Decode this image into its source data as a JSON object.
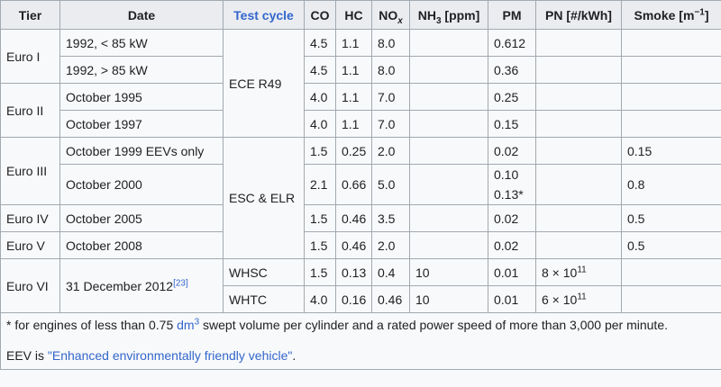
{
  "headers": {
    "tier": "Tier",
    "date": "Date",
    "test_cycle": "Test cycle",
    "co": "CO",
    "hc": "HC",
    "nox_base": "NO",
    "nox_sub": "x",
    "nh3_base": "NH",
    "nh3_sub": "3",
    "nh3_unit": " [ppm]",
    "pm": "PM",
    "pn": "PN [#/kWh]",
    "smoke_base": "Smoke [m",
    "smoke_exp": "−1",
    "smoke_close": "]"
  },
  "rows": [
    {
      "tier": "Euro I",
      "date": "1992, < 85 kW",
      "cycle": "ECE R49",
      "co": "4.5",
      "hc": "1.1",
      "nox": "8.0",
      "nh3": "",
      "pm": "0.612",
      "pn": "",
      "smoke": ""
    },
    {
      "date": "1992, > 85 kW",
      "co": "4.5",
      "hc": "1.1",
      "nox": "8.0",
      "nh3": "",
      "pm": "0.36",
      "pn": "",
      "smoke": ""
    },
    {
      "tier": "Euro II",
      "date": "October 1995",
      "co": "4.0",
      "hc": "1.1",
      "nox": "7.0",
      "nh3": "",
      "pm": "0.25",
      "pn": "",
      "smoke": ""
    },
    {
      "date": "October 1997",
      "co": "4.0",
      "hc": "1.1",
      "nox": "7.0",
      "nh3": "",
      "pm": "0.15",
      "pn": "",
      "smoke": ""
    },
    {
      "tier": "Euro III",
      "date": "October 1999 EEVs only",
      "cycle": "ESC & ELR",
      "co": "1.5",
      "hc": "0.25",
      "nox": "2.0",
      "nh3": "",
      "pm": "0.02",
      "pn": "",
      "smoke": "0.15"
    },
    {
      "date": "October 2000",
      "co": "2.1",
      "hc": "0.66",
      "nox": "5.0",
      "nh3": "",
      "pm_a": "0.10",
      "pm_b": "0.13*",
      "pn": "",
      "smoke": "0.8"
    },
    {
      "tier": "Euro IV",
      "date": "October 2005",
      "co": "1.5",
      "hc": "0.46",
      "nox": "3.5",
      "nh3": "",
      "pm": "0.02",
      "pn": "",
      "smoke": "0.5"
    },
    {
      "tier": "Euro V",
      "date": "October 2008",
      "co": "1.5",
      "hc": "0.46",
      "nox": "2.0",
      "nh3": "",
      "pm": "0.02",
      "pn": "",
      "smoke": "0.5"
    },
    {
      "tier": "Euro VI",
      "date": "31 December 2012",
      "date_ref": "[23]",
      "cycle": "WHSC",
      "co": "1.5",
      "hc": "0.13",
      "nox": "0.4",
      "nh3": "10",
      "pm": "0.01",
      "pn_base": "8 × 10",
      "pn_exp": "11",
      "smoke": ""
    },
    {
      "cycle": "WHTC",
      "co": "4.0",
      "hc": "0.16",
      "nox": "0.46",
      "nh3": "10",
      "pm": "0.01",
      "pn_base": "6 × 10",
      "pn_exp": "11",
      "smoke": ""
    }
  ],
  "footnotes": {
    "line1_a": "* for engines of less than 0.75 ",
    "line1_link": "dm",
    "line1_link_exp": "3",
    "line1_b": " swept volume per cylinder and a rated power speed of more than 3,000 per minute.",
    "line2_a": "EEV is ",
    "line2_link": "\"Enhanced environmentally friendly vehicle\"",
    "line2_b": "."
  },
  "colors": {
    "link": "#3366cc",
    "header_bg": "#eaecf0",
    "cell_bg": "#f8f9fa",
    "border": "#a2a9b1"
  }
}
